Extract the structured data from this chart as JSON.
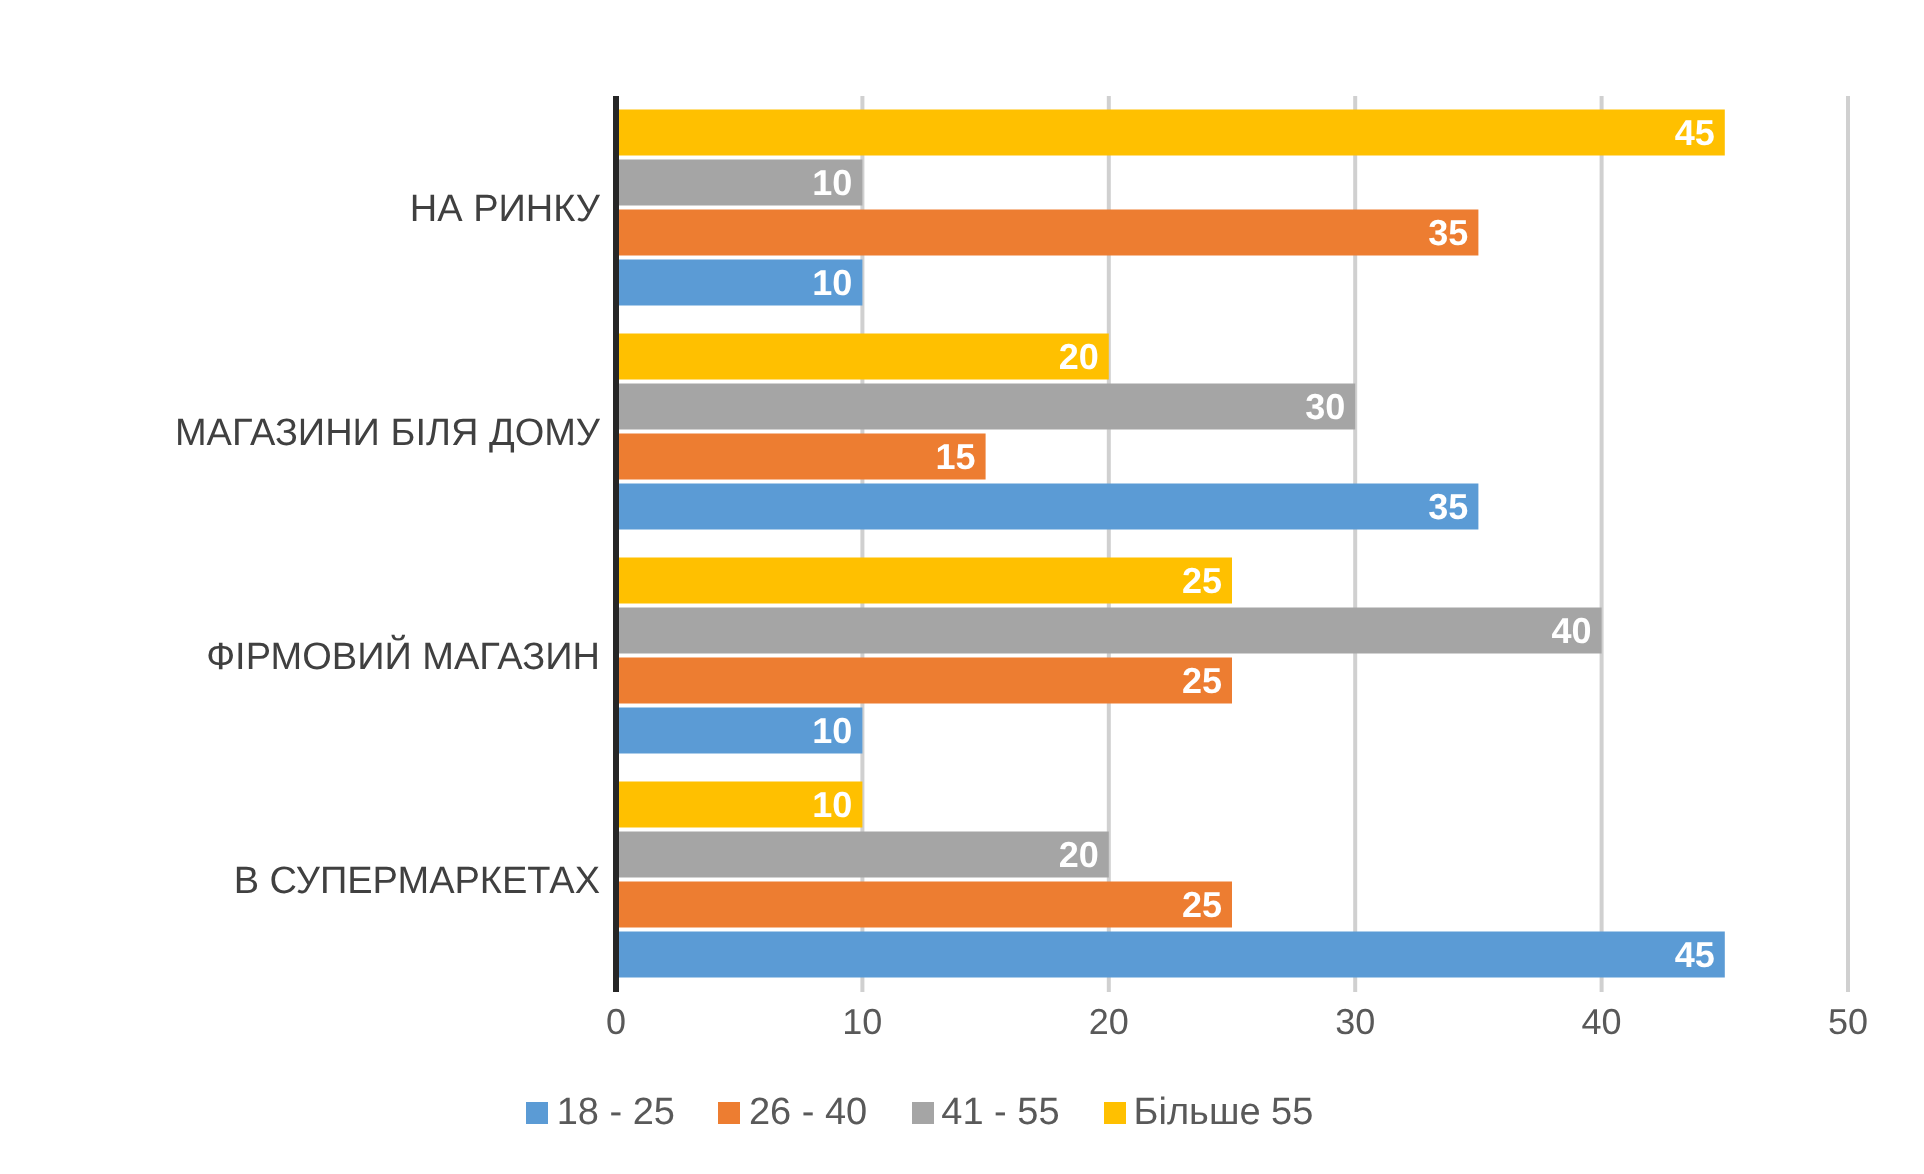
{
  "chart_data": {
    "type": "bar",
    "orientation": "horizontal",
    "categories": [
      "НА РИНКУ",
      "МАГАЗИНИ БІЛЯ ДОМУ",
      "ФІРМОВИЙ МАГАЗИН",
      "В СУПЕРМАРКЕТАХ"
    ],
    "series": [
      {
        "name": "Більше 55",
        "color": "#ffc000",
        "values": [
          45,
          20,
          25,
          10
        ]
      },
      {
        "name": "41 - 55",
        "color": "#a5a5a5",
        "values": [
          10,
          30,
          40,
          20
        ]
      },
      {
        "name": "26 - 40",
        "color": "#ed7d31",
        "values": [
          35,
          15,
          25,
          25
        ]
      },
      {
        "name": "18 - 25",
        "color": "#5b9bd5",
        "values": [
          10,
          35,
          10,
          45
        ]
      }
    ],
    "xlim": [
      0,
      50
    ],
    "xticks": [
      0,
      10,
      20,
      30,
      40,
      50
    ],
    "grid": "x",
    "legend": "bottom",
    "data_labels": true
  }
}
